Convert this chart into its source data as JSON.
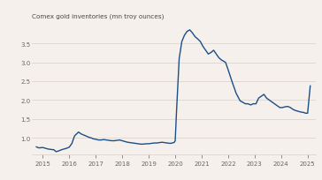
{
  "title": "Comex gold inventories (mn troy ounces)",
  "background_color": "#f5f0eb",
  "grid_color": "#d8d0c8",
  "line_color": "#1a4f8a",
  "title_color": "#4a4540",
  "tick_color": "#6a6560",
  "ylim": [
    0.55,
    4.1
  ],
  "yticks": [
    1.0,
    1.5,
    2.0,
    2.5,
    3.0,
    3.5
  ],
  "ytick_labels": [
    "1.0",
    "1.5",
    "2.0",
    "2.5",
    "3.0",
    "3.5"
  ],
  "xlim": [
    2014.6,
    2025.3
  ],
  "xtick_positions": [
    2015,
    2016,
    2017,
    2018,
    2019,
    2020,
    2021,
    2022,
    2023,
    2024,
    2025
  ],
  "xtick_labels": [
    "2015",
    "2016",
    "2017",
    "2018",
    "2019",
    "2020",
    "2021",
    "2022",
    "2023",
    "2024",
    "2025"
  ],
  "data_x": [
    2014.75,
    2014.85,
    2015.0,
    2015.1,
    2015.2,
    2015.3,
    2015.42,
    2015.5,
    2015.6,
    2015.7,
    2015.8,
    2015.9,
    2016.0,
    2016.1,
    2016.2,
    2016.35,
    2016.45,
    2016.55,
    2016.65,
    2016.75,
    2016.85,
    2016.9,
    2017.0,
    2017.1,
    2017.2,
    2017.3,
    2017.4,
    2017.5,
    2017.6,
    2017.7,
    2017.8,
    2017.9,
    2018.0,
    2018.1,
    2018.2,
    2018.3,
    2018.4,
    2018.5,
    2018.6,
    2018.7,
    2018.8,
    2018.9,
    2019.0,
    2019.1,
    2019.2,
    2019.3,
    2019.4,
    2019.5,
    2019.6,
    2019.7,
    2019.8,
    2019.9,
    2019.97,
    2020.0,
    2020.05,
    2020.15,
    2020.25,
    2020.35,
    2020.45,
    2020.55,
    2020.65,
    2020.75,
    2020.85,
    2020.95,
    2021.05,
    2021.15,
    2021.25,
    2021.35,
    2021.45,
    2021.55,
    2021.65,
    2021.75,
    2021.9,
    2022.0,
    2022.15,
    2022.3,
    2022.45,
    2022.55,
    2022.65,
    2022.75,
    2022.85,
    2022.95,
    2023.05,
    2023.15,
    2023.25,
    2023.35,
    2023.45,
    2023.55,
    2023.65,
    2023.75,
    2023.85,
    2023.95,
    2024.05,
    2024.15,
    2024.25,
    2024.35,
    2024.45,
    2024.55,
    2024.65,
    2024.75,
    2024.85,
    2024.92,
    2025.0,
    2025.1
  ],
  "data_y": [
    0.76,
    0.73,
    0.74,
    0.72,
    0.7,
    0.69,
    0.68,
    0.63,
    0.65,
    0.68,
    0.7,
    0.72,
    0.75,
    0.85,
    1.05,
    1.15,
    1.1,
    1.07,
    1.04,
    1.01,
    0.99,
    0.97,
    0.96,
    0.94,
    0.94,
    0.95,
    0.94,
    0.93,
    0.92,
    0.92,
    0.93,
    0.94,
    0.92,
    0.9,
    0.88,
    0.87,
    0.86,
    0.85,
    0.84,
    0.83,
    0.83,
    0.84,
    0.84,
    0.85,
    0.86,
    0.86,
    0.87,
    0.88,
    0.87,
    0.86,
    0.85,
    0.86,
    0.88,
    0.92,
    1.7,
    3.1,
    3.55,
    3.72,
    3.82,
    3.86,
    3.78,
    3.68,
    3.62,
    3.55,
    3.42,
    3.32,
    3.22,
    3.26,
    3.32,
    3.22,
    3.12,
    3.06,
    3.0,
    2.8,
    2.48,
    2.18,
    1.98,
    1.94,
    1.9,
    1.9,
    1.87,
    1.9,
    1.9,
    2.05,
    2.1,
    2.15,
    2.05,
    2.0,
    1.95,
    1.9,
    1.85,
    1.8,
    1.8,
    1.82,
    1.83,
    1.8,
    1.75,
    1.72,
    1.7,
    1.68,
    1.67,
    1.65,
    1.65,
    2.38
  ]
}
